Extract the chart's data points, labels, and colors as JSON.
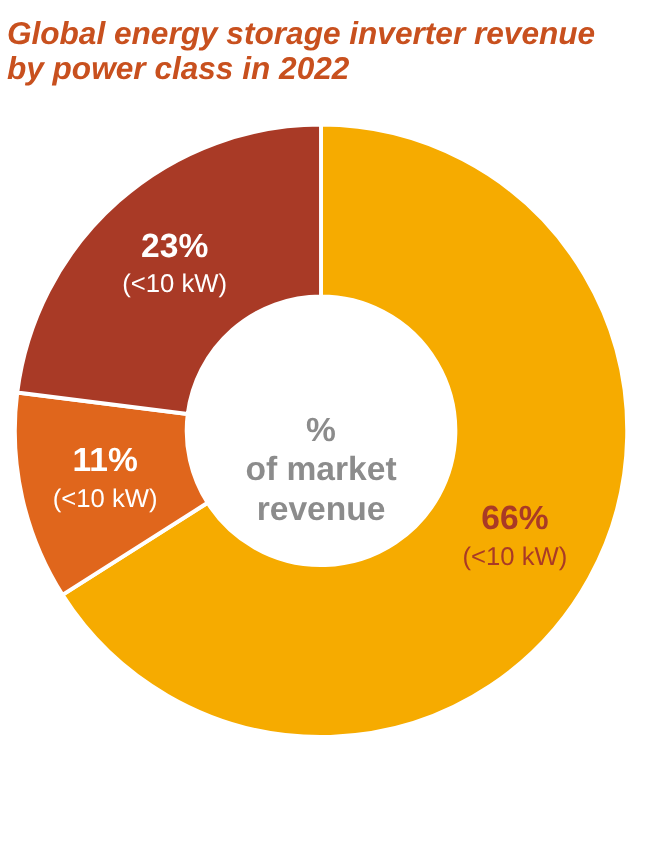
{
  "chart_data": {
    "type": "donut",
    "title": "Global energy storage inverter revenue by power class in 2022",
    "categories": [
      "(<10 kW)",
      "(<10 kW)",
      "(<10 kW)"
    ],
    "values": [
      66,
      11,
      23
    ],
    "value_labels": [
      "66%",
      "11%",
      "23%"
    ],
    "colors": [
      "#f6ab00",
      "#e0661c",
      "#a93a26"
    ],
    "legend": false,
    "annotations": [
      "%\nof market\nrevenue"
    ]
  }
}
